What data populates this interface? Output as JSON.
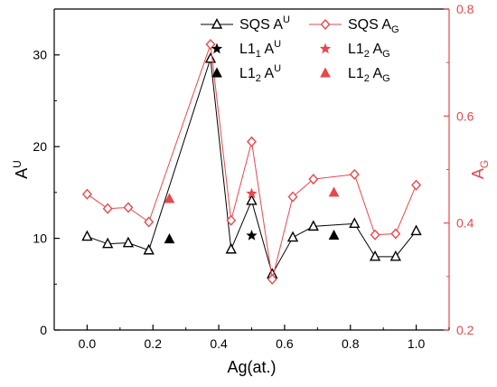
{
  "chart_data": {
    "type": "line",
    "xlabel": "Ag(at.)",
    "ylabel": "A",
    "ylabel_sup": "U",
    "y2label": "A",
    "y2label_sub": "G",
    "xlim": [
      -0.1,
      1.1
    ],
    "ylim": [
      0,
      35
    ],
    "y2lim": [
      0.2,
      0.8
    ],
    "xticks": [
      "0.0",
      "0.2",
      "0.4",
      "0.6",
      "0.8",
      "1.0"
    ],
    "yticks": [
      "0",
      "10",
      "20",
      "30"
    ],
    "y2ticks": [
      "0.2",
      "0.4",
      "0.6",
      "0.8"
    ],
    "grid": false,
    "legend_placement": "top-right",
    "colors": {
      "left": "#000000",
      "right": "#e8474b"
    },
    "series": [
      {
        "name": "SQS A",
        "name_sup": "U",
        "axis": "left",
        "marker": "open-triangle",
        "color": "#000000",
        "x": [
          0.0,
          0.0625,
          0.125,
          0.1875,
          0.375,
          0.4375,
          0.5,
          0.5625,
          0.625,
          0.6875,
          0.8125,
          0.875,
          0.9375,
          1.0
        ],
        "y": [
          10.2,
          9.4,
          9.5,
          8.7,
          29.6,
          8.8,
          14.1,
          6.1,
          10.1,
          11.3,
          11.6,
          8.0,
          8.0,
          10.8
        ]
      },
      {
        "name": "L1",
        "name_sub": "1",
        "name_after": " A",
        "name_sup": "U",
        "axis": "left",
        "marker": "star",
        "color": "#000000",
        "x": [
          0.5
        ],
        "y": [
          10.3
        ]
      },
      {
        "name": "L1",
        "name_sub": "2",
        "name_after": " A",
        "name_sup": "U",
        "axis": "left",
        "marker": "filled-triangle",
        "color": "#000000",
        "x": [
          0.25,
          0.75
        ],
        "y": [
          9.9,
          10.3
        ]
      },
      {
        "name": "SQS A",
        "name_sub_tail": "G",
        "axis": "right",
        "marker": "open-diamond",
        "color": "#e8474b",
        "x": [
          0.0,
          0.0625,
          0.125,
          0.1875,
          0.375,
          0.4375,
          0.5,
          0.5625,
          0.625,
          0.6875,
          0.8125,
          0.875,
          0.9375,
          1.0
        ],
        "y": [
          0.454,
          0.427,
          0.429,
          0.402,
          0.734,
          0.405,
          0.552,
          0.295,
          0.449,
          0.482,
          0.491,
          0.378,
          0.38,
          0.471
        ]
      },
      {
        "name": "L1",
        "name_sub": "2",
        "name_after": " A",
        "name_sub_tail": "G",
        "axis": "right",
        "marker": "star",
        "color": "#e8474b",
        "x": [
          0.5
        ],
        "y": [
          0.455
        ]
      },
      {
        "name": "L1",
        "name_sub": "2",
        "name_after": " A",
        "name_sub_tail": "G",
        "axis": "right",
        "marker": "filled-triangle",
        "color": "#e8474b",
        "x": [
          0.25,
          0.75
        ],
        "y": [
          0.445,
          0.457
        ]
      }
    ]
  }
}
